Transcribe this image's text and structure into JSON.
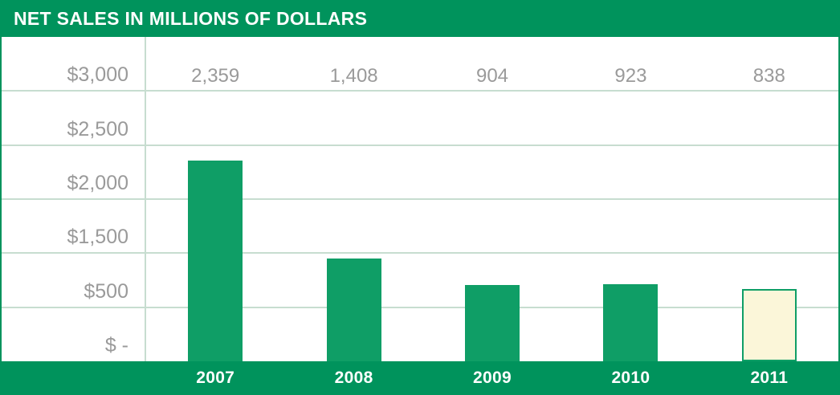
{
  "header": {
    "title": "NET SALES IN MILLIONS OF DOLLARS"
  },
  "chart_data": {
    "type": "bar",
    "title": "NET SALES IN MILLIONS OF DOLLARS",
    "categories": [
      "2007",
      "2008",
      "2009",
      "2010",
      "2011"
    ],
    "values": [
      2359,
      1408,
      904,
      923,
      838
    ],
    "value_labels": [
      "2,359",
      "1,408",
      "904",
      "923",
      "838"
    ],
    "xlabel": "",
    "ylabel": "",
    "ylim": [
      0,
      3000
    ],
    "grid": true,
    "legend_position": "none",
    "y_axis": {
      "tick_labels": [
        "$3,000",
        "$2,500",
        "$2,000",
        "$1,500",
        "$500",
        "$ -"
      ],
      "tick_values_ascending": [
        0,
        500,
        1500,
        2000,
        2500,
        3000
      ]
    },
    "bar_fills": [
      "#0f9e66",
      "#0f9e66",
      "#0f9e66",
      "#0f9e66",
      "#fbf6d9"
    ],
    "bar_borders": [
      null,
      null,
      null,
      null,
      "#0f9e66"
    ],
    "colors": {
      "header_green": "#00935c",
      "bar_green": "#0f9e66",
      "bar_2011_fill": "#fbf6d9",
      "bar_2011_border": "#0f9e66",
      "gridline": "#c7ddd0",
      "label_gray": "#9a9a9a",
      "title_text": "#ffffff",
      "x_label_text": "#ffffff"
    }
  }
}
